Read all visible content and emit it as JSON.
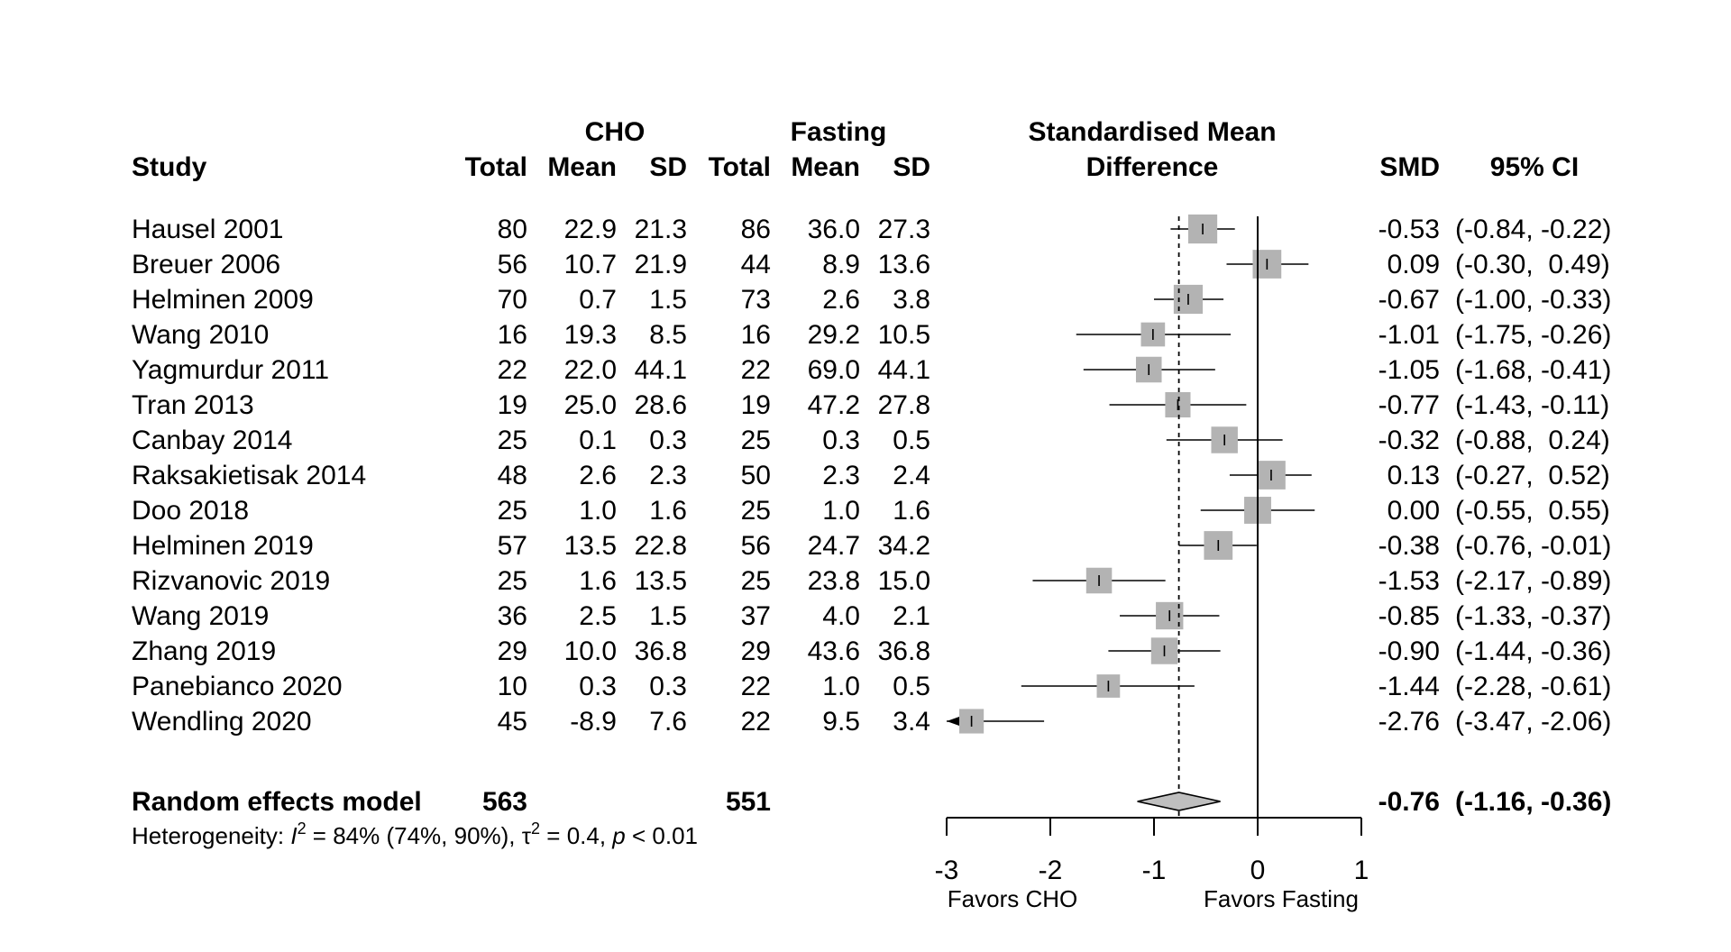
{
  "chart_data": {
    "type": "forest",
    "headers": {
      "study": "Study",
      "group1": "CHO",
      "group2": "Fasting",
      "total": "Total",
      "mean": "Mean",
      "sd": "SD",
      "effect_line1": "Standardised Mean",
      "effect_line2": "Difference",
      "smd": "SMD",
      "ci": "95% CI"
    },
    "studies": [
      {
        "name": "Hausel 2001",
        "n1": "80",
        "mean1": "22.9",
        "sd1": "21.3",
        "n2": "86",
        "mean2": "36.0",
        "sd2": "27.3",
        "smd": -0.53,
        "lower": -0.84,
        "upper": -0.22,
        "smd_text": "-0.53",
        "ci_text": "(-0.84, -0.22)",
        "weight": 7.0
      },
      {
        "name": "Breuer 2006",
        "n1": "56",
        "mean1": "10.7",
        "sd1": "21.9",
        "n2": "44",
        "mean2": "8.9",
        "sd2": "13.6",
        "smd": 0.09,
        "lower": -0.3,
        "upper": 0.49,
        "smd_text": "0.09",
        "ci_text": "(-0.30,  0.49)",
        "weight": 6.9
      },
      {
        "name": "Helminen 2009",
        "n1": "70",
        "mean1": "0.7",
        "sd1": "1.5",
        "n2": "73",
        "mean2": "2.6",
        "sd2": "3.8",
        "smd": -0.67,
        "lower": -1.0,
        "upper": -0.33,
        "smd_text": "-0.67",
        "ci_text": "(-1.00, -0.33)",
        "weight": 7.0
      },
      {
        "name": "Wang 2010",
        "n1": "16",
        "mean1": "19.3",
        "sd1": "8.5",
        "n2": "16",
        "mean2": "29.2",
        "sd2": "10.5",
        "smd": -1.01,
        "lower": -1.75,
        "upper": -0.26,
        "smd_text": "-1.01",
        "ci_text": "(-1.75, -0.26)",
        "weight": 5.8
      },
      {
        "name": "Yagmurdur 2011",
        "n1": "22",
        "mean1": "22.0",
        "sd1": "44.1",
        "n2": "22",
        "mean2": "69.0",
        "sd2": "44.1",
        "smd": -1.05,
        "lower": -1.68,
        "upper": -0.41,
        "smd_text": "-1.05",
        "ci_text": "(-1.68, -0.41)",
        "weight": 6.2
      },
      {
        "name": "Tran 2013",
        "n1": "19",
        "mean1": "25.0",
        "sd1": "28.6",
        "n2": "19",
        "mean2": "47.2",
        "sd2": "27.8",
        "smd": -0.77,
        "lower": -1.43,
        "upper": -0.11,
        "smd_text": "-0.77",
        "ci_text": "(-1.43, -0.11)",
        "weight": 6.1
      },
      {
        "name": "Canbay 2014",
        "n1": "25",
        "mean1": "0.1",
        "sd1": "0.3",
        "n2": "25",
        "mean2": "0.3",
        "sd2": "0.5",
        "smd": -0.32,
        "lower": -0.88,
        "upper": 0.24,
        "smd_text": "-0.32",
        "ci_text": "(-0.88,  0.24)",
        "weight": 6.4
      },
      {
        "name": "Raksakietisak 2014",
        "n1": "48",
        "mean1": "2.6",
        "sd1": "2.3",
        "n2": "50",
        "mean2": "2.3",
        "sd2": "2.4",
        "smd": 0.13,
        "lower": -0.27,
        "upper": 0.52,
        "smd_text": "0.13",
        "ci_text": "(-0.27,  0.52)",
        "weight": 6.9
      },
      {
        "name": "Doo 2018",
        "n1": "25",
        "mean1": "1.0",
        "sd1": "1.6",
        "n2": "25",
        "mean2": "1.0",
        "sd2": "1.6",
        "smd": 0.0,
        "lower": -0.55,
        "upper": 0.55,
        "smd_text": "0.00",
        "ci_text": "(-0.55,  0.55)",
        "weight": 6.5
      },
      {
        "name": "Helminen 2019",
        "n1": "57",
        "mean1": "13.5",
        "sd1": "22.8",
        "n2": "56",
        "mean2": "24.7",
        "sd2": "34.2",
        "smd": -0.38,
        "lower": -0.76,
        "upper": -0.01,
        "smd_text": "-0.38",
        "ci_text": "(-0.76, -0.01)",
        "weight": 6.9
      },
      {
        "name": "Rizvanovic 2019",
        "n1": "25",
        "mean1": "1.6",
        "sd1": "13.5",
        "n2": "25",
        "mean2": "23.8",
        "sd2": "15.0",
        "smd": -1.53,
        "lower": -2.17,
        "upper": -0.89,
        "smd_text": "-1.53",
        "ci_text": "(-2.17, -0.89)",
        "weight": 6.2
      },
      {
        "name": "Wang 2019",
        "n1": "36",
        "mean1": "2.5",
        "sd1": "1.5",
        "n2": "37",
        "mean2": "4.0",
        "sd2": "2.1",
        "smd": -0.85,
        "lower": -1.33,
        "upper": -0.37,
        "smd_text": "-0.85",
        "ci_text": "(-1.33, -0.37)",
        "weight": 6.6
      },
      {
        "name": "Zhang 2019",
        "n1": "29",
        "mean1": "10.0",
        "sd1": "36.8",
        "n2": "29",
        "mean2": "43.6",
        "sd2": "36.8",
        "smd": -0.9,
        "lower": -1.44,
        "upper": -0.36,
        "smd_text": "-0.90",
        "ci_text": "(-1.44, -0.36)",
        "weight": 6.4
      },
      {
        "name": "Panebianco 2020",
        "n1": "10",
        "mean1": "0.3",
        "sd1": "0.3",
        "n2": "22",
        "mean2": "1.0",
        "sd2": "0.5",
        "smd": -1.44,
        "lower": -2.28,
        "upper": -0.61,
        "smd_text": "-1.44",
        "ci_text": "(-2.28, -0.61)",
        "weight": 5.6
      },
      {
        "name": "Wendling 2020",
        "n1": "45",
        "mean1": "-8.9",
        "sd1": "7.6",
        "n2": "22",
        "mean2": "9.5",
        "sd2": "3.4",
        "smd": -2.76,
        "lower": -3.47,
        "upper": -2.06,
        "smd_text": "-2.76",
        "ci_text": "(-3.47, -2.06)",
        "weight": 5.9
      }
    ],
    "summary": {
      "label": "Random effects model",
      "n1": "563",
      "n2": "551",
      "smd": -0.76,
      "lower": -1.16,
      "upper": -0.36,
      "smd_text": "-0.76",
      "ci_text": "(-1.16, -0.36)"
    },
    "heterogeneity": {
      "prefix": "Heterogeneity: ",
      "i_symbol": "I",
      "sup1": "2",
      "i2_part": " = 84% (74%, 90%), ",
      "tau_symbol": "τ",
      "sup2": "2",
      "tau_part": " = 0.4, ",
      "p_symbol": "p",
      "p_part": " < 0.01"
    },
    "axis": {
      "ticks": [
        -3,
        -2,
        -1,
        0,
        1
      ],
      "tick_labels": [
        "-3",
        "-2",
        "-1",
        "0",
        "1"
      ],
      "xlim": [
        -3,
        1
      ],
      "null_value": 0,
      "label_left": "Favors CHO",
      "label_right": "Favors Fasting"
    },
    "colors": {
      "square": "#b3b3b3",
      "diamond": "#bfbfbf",
      "line": "#000000"
    }
  }
}
